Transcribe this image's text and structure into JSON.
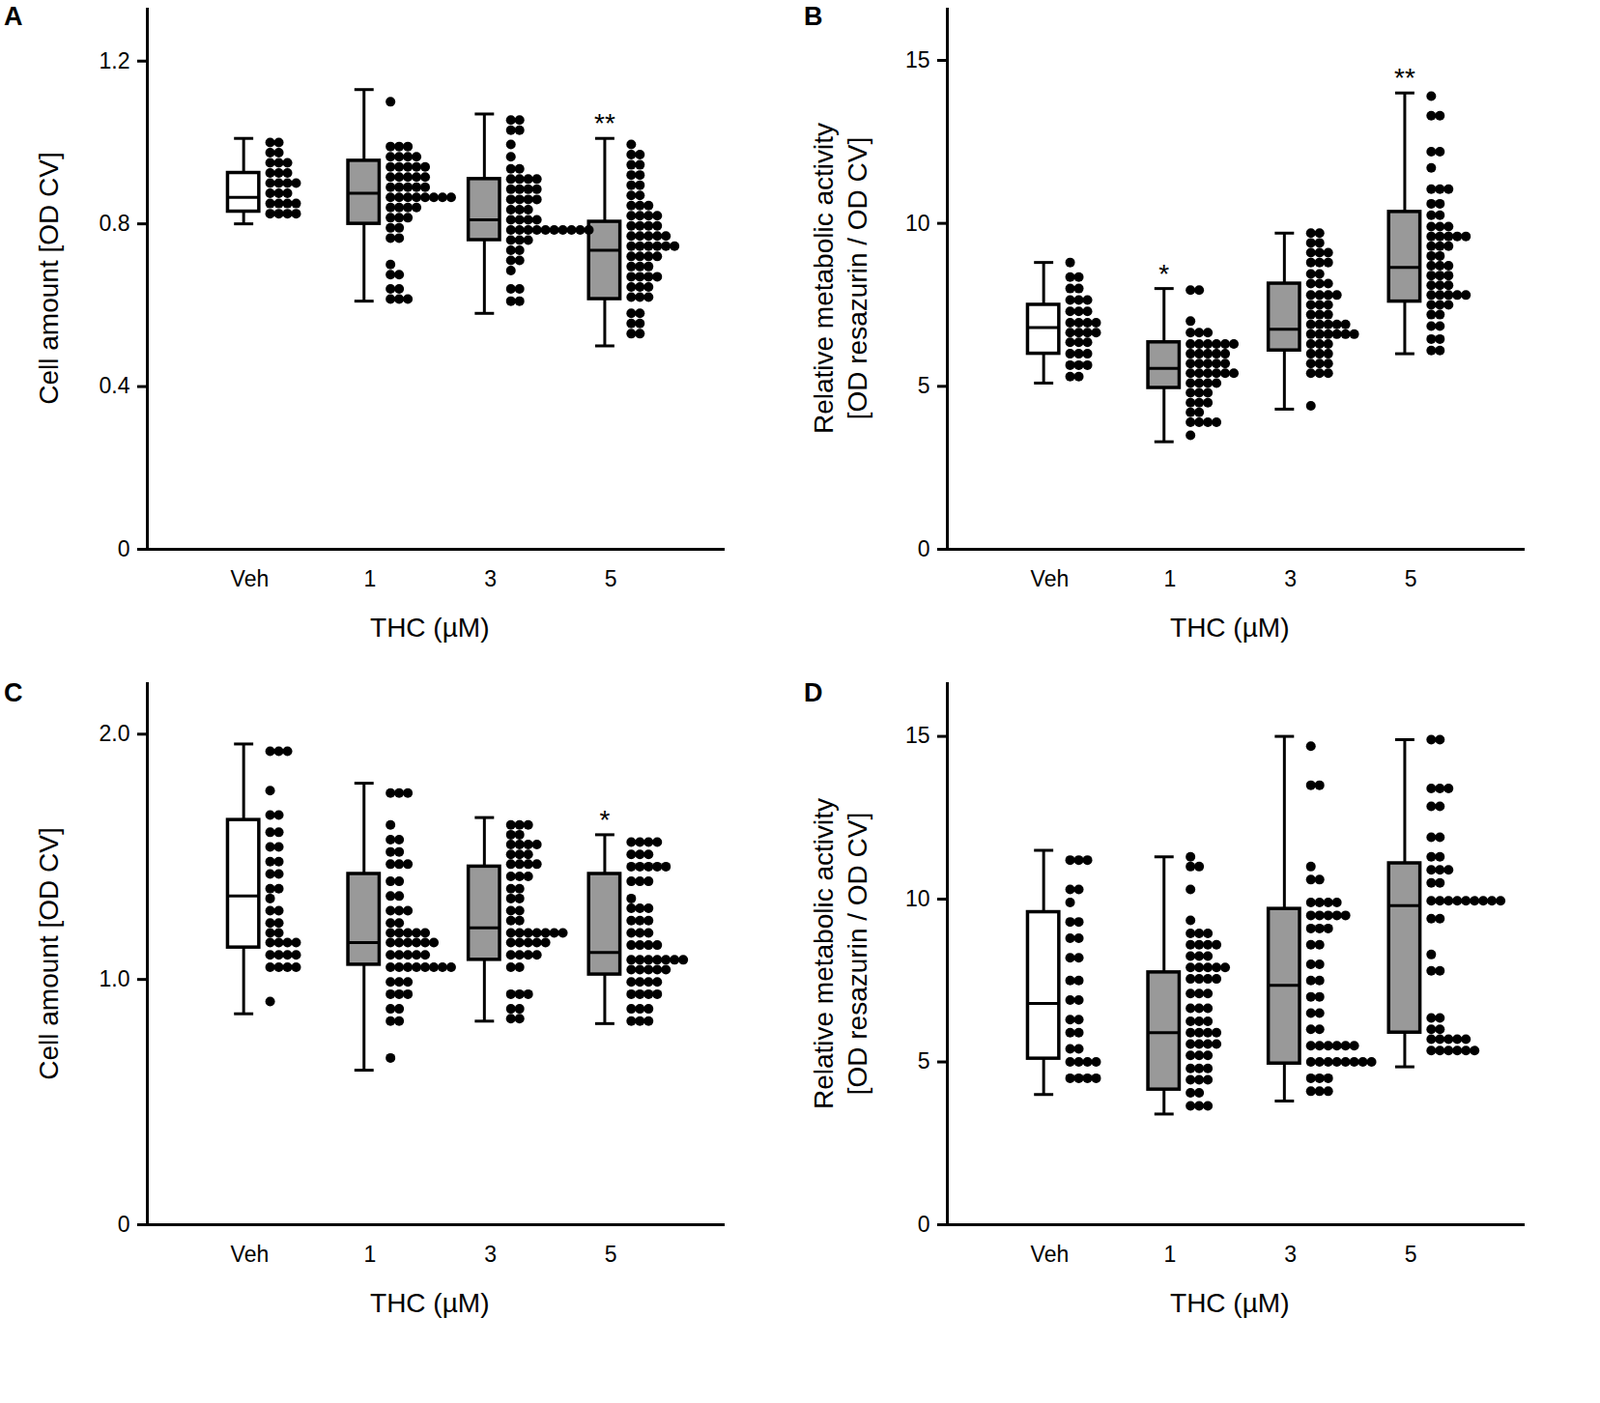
{
  "chart_data": [
    {
      "type": "box",
      "title": "A",
      "ylabel": [
        "Cell amount [OD CV]"
      ],
      "xlabel": "THC (µM)",
      "categories": [
        "Veh",
        "1",
        "3",
        "5"
      ],
      "colors": [
        "#ffffff",
        "#999999",
        "#999999",
        "#999999"
      ],
      "ylim": [
        0,
        1.33
      ],
      "yticks": [
        0,
        0.4,
        0.8,
        1.2
      ],
      "boxes": [
        {
          "min": 0.8,
          "q1": 0.83,
          "median": 0.865,
          "q3": 0.925,
          "max": 1.01
        },
        {
          "min": 0.61,
          "q1": 0.8,
          "median": 0.875,
          "q3": 0.955,
          "max": 1.13
        },
        {
          "min": 0.58,
          "q1": 0.76,
          "median": 0.81,
          "q3": 0.91,
          "max": 1.07
        },
        {
          "min": 0.5,
          "q1": 0.615,
          "median": 0.735,
          "q3": 0.805,
          "max": 1.01
        }
      ],
      "points": [
        [
          1.0,
          1.0,
          0.975,
          0.975,
          0.95,
          0.95,
          0.95,
          0.925,
          0.925,
          0.925,
          0.9,
          0.9,
          0.9,
          0.9,
          0.875,
          0.875,
          0.875,
          0.85,
          0.85,
          0.85,
          0.85,
          0.825,
          0.825,
          0.825,
          0.825
        ],
        [
          1.1,
          0.99,
          0.99,
          0.99,
          0.965,
          0.965,
          0.965,
          0.965,
          0.94,
          0.94,
          0.94,
          0.94,
          0.94,
          0.915,
          0.915,
          0.915,
          0.915,
          0.915,
          0.89,
          0.89,
          0.89,
          0.89,
          0.89,
          0.865,
          0.865,
          0.865,
          0.865,
          0.865,
          0.865,
          0.865,
          0.865,
          0.84,
          0.84,
          0.84,
          0.84,
          0.815,
          0.815,
          0.815,
          0.79,
          0.79,
          0.765,
          0.765,
          0.7,
          0.675,
          0.675,
          0.64,
          0.64,
          0.615,
          0.615,
          0.615
        ],
        [
          1.055,
          1.055,
          1.03,
          1.03,
          0.995,
          0.965,
          0.935,
          0.935,
          0.91,
          0.91,
          0.91,
          0.91,
          0.885,
          0.885,
          0.885,
          0.885,
          0.86,
          0.86,
          0.86,
          0.86,
          0.835,
          0.835,
          0.835,
          0.81,
          0.81,
          0.81,
          0.81,
          0.785,
          0.785,
          0.785,
          0.785,
          0.785,
          0.785,
          0.785,
          0.785,
          0.785,
          0.785,
          0.76,
          0.76,
          0.76,
          0.735,
          0.735,
          0.71,
          0.71,
          0.685,
          0.64,
          0.64,
          0.61,
          0.61
        ],
        [
          0.995,
          0.97,
          0.97,
          0.945,
          0.945,
          0.92,
          0.92,
          0.895,
          0.895,
          0.87,
          0.87,
          0.845,
          0.845,
          0.845,
          0.82,
          0.82,
          0.82,
          0.82,
          0.795,
          0.795,
          0.795,
          0.795,
          0.77,
          0.77,
          0.77,
          0.77,
          0.77,
          0.745,
          0.745,
          0.745,
          0.745,
          0.745,
          0.745,
          0.72,
          0.72,
          0.72,
          0.72,
          0.695,
          0.695,
          0.695,
          0.67,
          0.67,
          0.67,
          0.67,
          0.645,
          0.645,
          0.645,
          0.62,
          0.62,
          0.62,
          0.58,
          0.58,
          0.555,
          0.555,
          0.53,
          0.53
        ]
      ],
      "annotations": [
        {
          "category": "5",
          "text": "**"
        }
      ]
    },
    {
      "type": "box",
      "title": "B",
      "ylabel": [
        "Relative metabolic activity",
        "[OD resazurin / OD CV]"
      ],
      "xlabel": "THC (µM)",
      "categories": [
        "Veh",
        "1",
        "3",
        "5"
      ],
      "colors": [
        "#ffffff",
        "#999999",
        "#999999",
        "#999999"
      ],
      "ylim": [
        0,
        16.6
      ],
      "yticks": [
        0,
        5,
        10,
        15
      ],
      "boxes": [
        {
          "min": 5.1,
          "q1": 6.0,
          "median": 6.8,
          "q3": 7.5,
          "max": 8.8
        },
        {
          "min": 3.3,
          "q1": 4.95,
          "median": 5.55,
          "q3": 6.35,
          "max": 8.0
        },
        {
          "min": 4.3,
          "q1": 6.1,
          "median": 6.75,
          "q3": 8.15,
          "max": 9.7
        },
        {
          "min": 6.0,
          "q1": 7.6,
          "median": 8.65,
          "q3": 10.35,
          "max": 14.0
        }
      ],
      "points": [
        [
          8.8,
          8.35,
          8.35,
          8.0,
          8.0,
          7.65,
          7.65,
          7.65,
          7.3,
          7.3,
          7.3,
          6.95,
          6.95,
          6.95,
          6.95,
          6.65,
          6.65,
          6.65,
          6.65,
          6.35,
          6.35,
          6.35,
          6.0,
          6.0,
          6.0,
          5.65,
          5.65,
          5.65,
          5.3,
          5.3
        ],
        [
          7.95,
          7.95,
          7.0,
          6.65,
          6.65,
          6.65,
          6.3,
          6.3,
          6.3,
          6.3,
          6.3,
          6.3,
          6.0,
          6.0,
          6.0,
          6.0,
          6.0,
          5.7,
          5.7,
          5.7,
          5.7,
          5.7,
          5.4,
          5.4,
          5.4,
          5.4,
          5.4,
          5.4,
          5.1,
          5.1,
          5.1,
          5.1,
          4.8,
          4.8,
          4.8,
          4.5,
          4.5,
          4.5,
          4.2,
          4.2,
          3.9,
          3.9,
          3.9,
          3.9,
          3.5
        ],
        [
          9.7,
          9.7,
          9.4,
          9.4,
          9.1,
          9.1,
          9.1,
          8.8,
          8.8,
          8.8,
          8.45,
          8.45,
          8.15,
          8.15,
          8.15,
          7.8,
          7.8,
          7.8,
          7.8,
          7.5,
          7.5,
          7.5,
          7.2,
          7.2,
          7.2,
          6.9,
          6.9,
          6.9,
          6.9,
          6.9,
          6.6,
          6.6,
          6.6,
          6.6,
          6.6,
          6.6,
          6.3,
          6.3,
          6.3,
          6.0,
          6.0,
          6.0,
          5.7,
          5.7,
          5.7,
          5.4,
          5.4,
          5.4,
          4.4
        ],
        [
          13.9,
          13.3,
          13.3,
          12.2,
          12.2,
          11.7,
          11.05,
          11.05,
          11.05,
          10.6,
          10.6,
          10.25,
          10.25,
          9.9,
          9.9,
          9.9,
          9.6,
          9.6,
          9.6,
          9.6,
          9.6,
          9.3,
          9.3,
          9.3,
          9.0,
          9.0,
          8.7,
          8.7,
          8.7,
          8.4,
          8.4,
          8.4,
          8.1,
          8.1,
          8.1,
          7.8,
          7.8,
          7.8,
          7.8,
          7.8,
          7.5,
          7.5,
          7.5,
          7.2,
          7.2,
          6.85,
          6.85,
          6.45,
          6.45,
          6.1,
          6.1
        ]
      ],
      "annotations": [
        {
          "category": "1",
          "text": "*"
        },
        {
          "category": "5",
          "text": "**"
        }
      ]
    },
    {
      "type": "box",
      "title": "C",
      "ylabel": [
        "Cell amount [OD CV]"
      ],
      "xlabel": "THC (µM)",
      "categories": [
        "Veh",
        "1",
        "3",
        "5"
      ],
      "colors": [
        "#ffffff",
        "#999999",
        "#999999",
        "#999999"
      ],
      "ylim": [
        0,
        2.21
      ],
      "yticks": [
        0,
        {
          "value": 1,
          "label": "1.0"
        },
        {
          "value": 2,
          "label": "2.0"
        }
      ],
      "boxes": [
        {
          "min": 0.86,
          "q1": 1.13,
          "median": 1.34,
          "q3": 1.65,
          "max": 1.96
        },
        {
          "min": 0.63,
          "q1": 1.06,
          "median": 1.15,
          "q3": 1.43,
          "max": 1.8
        },
        {
          "min": 0.83,
          "q1": 1.08,
          "median": 1.21,
          "q3": 1.46,
          "max": 1.66
        },
        {
          "min": 0.82,
          "q1": 1.02,
          "median": 1.11,
          "q3": 1.43,
          "max": 1.59
        }
      ],
      "points": [
        [
          1.93,
          1.93,
          1.93,
          1.77,
          1.67,
          1.67,
          1.6,
          1.6,
          1.54,
          1.54,
          1.48,
          1.48,
          1.43,
          1.43,
          1.37,
          1.37,
          1.33,
          1.28,
          1.28,
          1.23,
          1.23,
          1.19,
          1.19,
          1.15,
          1.15,
          1.15,
          1.15,
          1.1,
          1.1,
          1.1,
          1.1,
          1.05,
          1.05,
          1.05,
          1.05,
          0.91
        ],
        [
          1.76,
          1.76,
          1.76,
          1.63,
          1.57,
          1.57,
          1.52,
          1.52,
          1.47,
          1.47,
          1.47,
          1.4,
          1.4,
          1.34,
          1.34,
          1.28,
          1.28,
          1.28,
          1.23,
          1.23,
          1.19,
          1.19,
          1.19,
          1.19,
          1.19,
          1.15,
          1.15,
          1.15,
          1.15,
          1.15,
          1.15,
          1.1,
          1.1,
          1.1,
          1.1,
          1.1,
          1.05,
          1.05,
          1.05,
          1.05,
          1.05,
          1.05,
          1.05,
          1.05,
          0.99,
          0.99,
          0.99,
          0.94,
          0.94,
          0.94,
          0.88,
          0.88,
          0.83,
          0.83,
          0.68
        ],
        [
          1.63,
          1.63,
          1.63,
          1.59,
          1.59,
          1.55,
          1.55,
          1.55,
          1.55,
          1.51,
          1.51,
          1.51,
          1.47,
          1.47,
          1.47,
          1.47,
          1.42,
          1.42,
          1.42,
          1.37,
          1.37,
          1.33,
          1.33,
          1.28,
          1.28,
          1.24,
          1.24,
          1.19,
          1.19,
          1.19,
          1.19,
          1.19,
          1.19,
          1.19,
          1.15,
          1.15,
          1.15,
          1.15,
          1.15,
          1.1,
          1.1,
          1.1,
          1.1,
          1.05,
          1.05,
          0.94,
          0.94,
          0.94,
          0.88,
          0.88,
          0.84,
          0.84
        ],
        [
          1.56,
          1.56,
          1.56,
          1.56,
          1.51,
          1.51,
          1.51,
          1.46,
          1.46,
          1.46,
          1.46,
          1.46,
          1.4,
          1.4,
          1.4,
          1.33,
          1.29,
          1.29,
          1.29,
          1.24,
          1.24,
          1.24,
          1.19,
          1.19,
          1.19,
          1.14,
          1.14,
          1.14,
          1.14,
          1.08,
          1.08,
          1.08,
          1.08,
          1.08,
          1.08,
          1.08,
          1.04,
          1.04,
          1.04,
          1.04,
          1.04,
          0.99,
          0.99,
          0.99,
          0.99,
          0.94,
          0.94,
          0.94,
          0.94,
          0.88,
          0.88,
          0.88,
          0.83,
          0.83,
          0.83
        ]
      ],
      "annotations": [
        {
          "category": "5",
          "text": "*"
        }
      ]
    },
    {
      "type": "box",
      "title": "D",
      "ylabel": [
        "Relative metabolic activity",
        "[OD resazurin / OD CV]"
      ],
      "xlabel": "THC (µM)",
      "categories": [
        "Veh",
        "1",
        "3",
        "5"
      ],
      "colors": [
        "#ffffff",
        "#999999",
        "#999999",
        "#999999"
      ],
      "ylim": [
        0,
        16.65
      ],
      "yticks": [
        0,
        5,
        10,
        15
      ],
      "boxes": [
        {
          "min": 4.0,
          "q1": 5.1,
          "median": 6.8,
          "q3": 9.6,
          "max": 11.5
        },
        {
          "min": 3.4,
          "q1": 4.15,
          "median": 5.9,
          "q3": 7.75,
          "max": 11.3
        },
        {
          "min": 3.8,
          "q1": 4.95,
          "median": 7.35,
          "q3": 9.7,
          "max": 15.0
        },
        {
          "min": 4.85,
          "q1": 5.9,
          "median": 9.8,
          "q3": 11.1,
          "max": 14.9
        }
      ],
      "points": [
        [
          11.2,
          11.2,
          11.2,
          10.3,
          10.3,
          9.9,
          9.3,
          9.3,
          8.8,
          8.8,
          8.2,
          8.2,
          7.5,
          7.5,
          6.9,
          6.9,
          6.3,
          6.3,
          5.9,
          5.9,
          5.4,
          5.4,
          5.0,
          5.0,
          5.0,
          5.0,
          4.5,
          4.5,
          4.5,
          4.5
        ],
        [
          11.3,
          11.0,
          11.0,
          10.3,
          9.35,
          8.95,
          8.95,
          8.95,
          8.6,
          8.6,
          8.6,
          8.6,
          8.25,
          8.25,
          8.25,
          7.9,
          7.9,
          7.9,
          7.9,
          7.9,
          7.55,
          7.55,
          7.55,
          7.55,
          7.1,
          7.1,
          7.1,
          6.65,
          6.65,
          6.65,
          6.25,
          6.25,
          6.25,
          5.9,
          5.9,
          5.9,
          5.9,
          5.55,
          5.55,
          5.55,
          5.55,
          5.2,
          5.2,
          5.2,
          4.8,
          4.8,
          4.8,
          4.45,
          4.45,
          4.45,
          4.05,
          4.05,
          3.65,
          3.65,
          3.65
        ],
        [
          14.7,
          13.5,
          13.5,
          11.0,
          10.6,
          10.6,
          9.9,
          9.9,
          9.9,
          9.9,
          9.5,
          9.5,
          9.5,
          9.5,
          9.5,
          9.1,
          9.1,
          9.1,
          8.6,
          8.6,
          8.0,
          8.0,
          7.5,
          7.5,
          7.0,
          7.0,
          6.5,
          6.5,
          6.0,
          6.0,
          5.5,
          5.5,
          5.5,
          5.5,
          5.5,
          5.5,
          5.0,
          5.0,
          5.0,
          5.0,
          5.0,
          5.0,
          5.0,
          5.0,
          4.5,
          4.5,
          4.5,
          4.1,
          4.1,
          4.1
        ],
        [
          14.9,
          14.9,
          13.4,
          13.4,
          13.4,
          12.85,
          12.85,
          11.9,
          11.9,
          11.3,
          11.3,
          10.9,
          10.9,
          10.9,
          10.5,
          10.5,
          9.95,
          9.95,
          9.95,
          9.95,
          9.95,
          9.95,
          9.95,
          9.95,
          9.95,
          9.4,
          9.4,
          8.3,
          7.8,
          7.8,
          6.35,
          6.35,
          6.0,
          6.0,
          5.7,
          5.7,
          5.7,
          5.7,
          5.7,
          5.35,
          5.35,
          5.35,
          5.35,
          5.35,
          5.35
        ]
      ],
      "annotations": []
    }
  ]
}
